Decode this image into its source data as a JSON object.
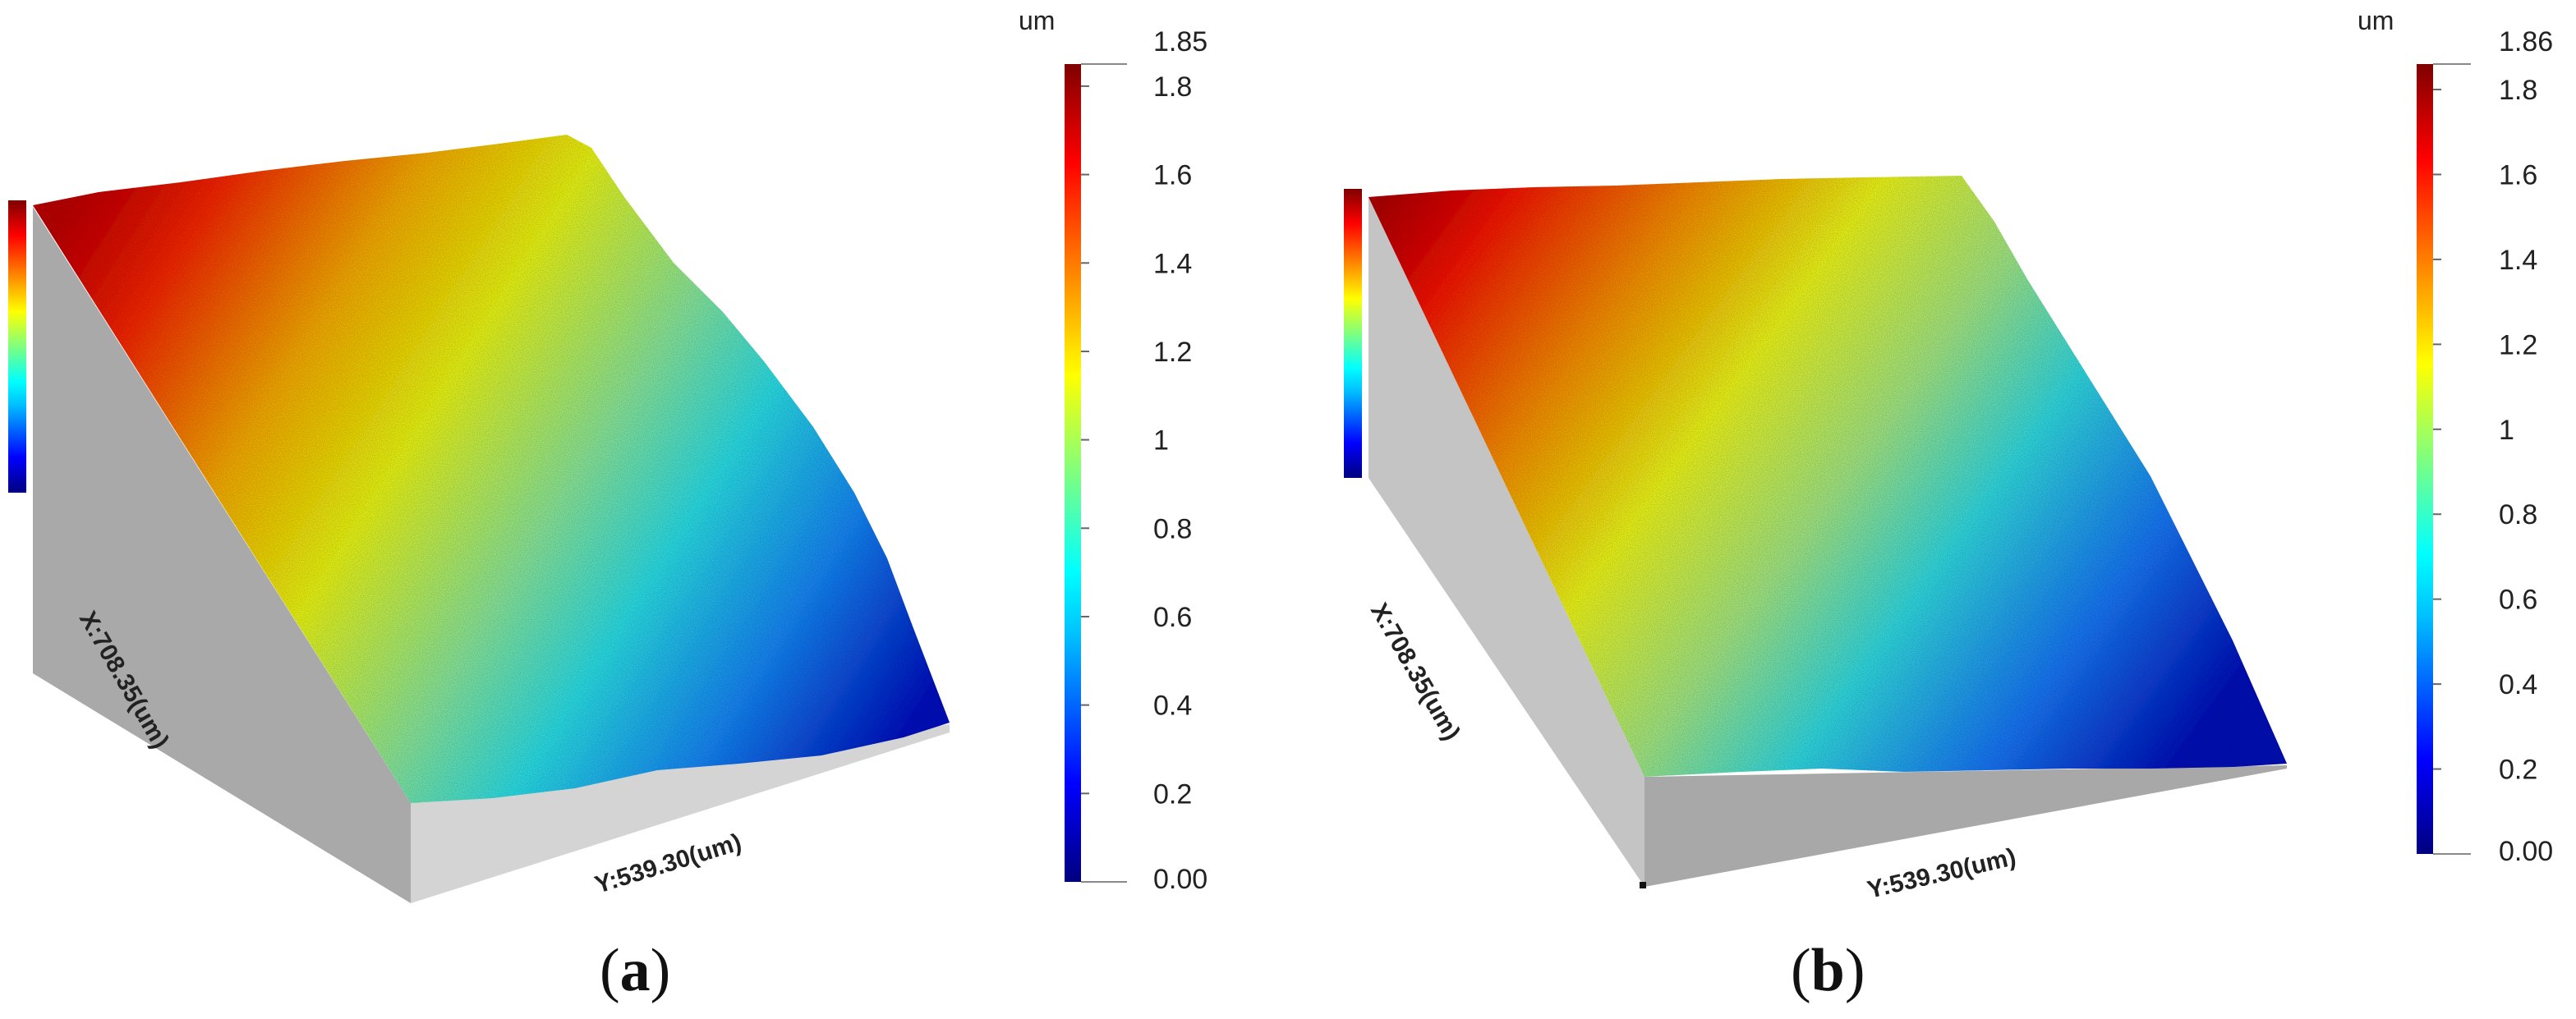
{
  "panels": [
    {
      "id": "a",
      "caption_open": "(",
      "caption_letter": "a",
      "caption_close": ")",
      "x_axis_label": "X:708.35(um)",
      "y_axis_label": "Y:539.30(um)",
      "colorbar": {
        "unit": "um",
        "max_label": "1.85",
        "min_label": "0.00",
        "ticks": [
          "1.8",
          "1.6",
          "1.4",
          "1.2",
          "1",
          "0.8",
          "0.6",
          "0.4",
          "0.2"
        ],
        "range": [
          0.0,
          1.85
        ]
      }
    },
    {
      "id": "b",
      "caption_open": "(",
      "caption_letter": "b",
      "caption_close": ")",
      "x_axis_label": "X:708.35(um)",
      "y_axis_label": "Y:539.30(um)",
      "colorbar": {
        "unit": "um",
        "max_label": "1.86",
        "min_label": "0.00",
        "ticks": [
          "1.8",
          "1.6",
          "1.4",
          "1.2",
          "1",
          "0.8",
          "0.6",
          "0.4",
          "0.2"
        ],
        "range": [
          0.0,
          1.86
        ]
      }
    }
  ],
  "colormap": {
    "name": "jet",
    "stops": [
      "#00007f",
      "#0000ff",
      "#00bfff",
      "#00ffff",
      "#7fff7f",
      "#ffff00",
      "#ff8000",
      "#ff0000",
      "#7f0000"
    ]
  }
}
